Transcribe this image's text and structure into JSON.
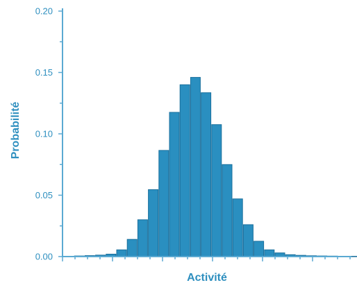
{
  "chart_data": {
    "type": "bar",
    "xlabel": "Activité",
    "ylabel": "Probabilité",
    "ylim": [
      0,
      0.2
    ],
    "yticks": [
      "0.00",
      "0.05",
      "0.10",
      "0.15",
      "0.20"
    ],
    "ytick_values": [
      0,
      0.05,
      0.1,
      0.15,
      0.2
    ],
    "bar_count": 28,
    "values": [
      0.0003,
      0.0005,
      0.0008,
      0.0012,
      0.002,
      0.0055,
      0.014,
      0.03,
      0.0545,
      0.0865,
      0.1175,
      0.14,
      0.146,
      0.1335,
      0.1075,
      0.075,
      0.047,
      0.026,
      0.0125,
      0.0055,
      0.003,
      0.0015,
      0.001,
      0.0007,
      0.0005,
      0.0004,
      0.0003,
      0.0002
    ],
    "grid": false,
    "colors": {
      "bar": "#2a8fc0",
      "bar_edge": "#1a6f9c",
      "axis": "#5aa9d2",
      "text": "#2e8fbf"
    }
  }
}
